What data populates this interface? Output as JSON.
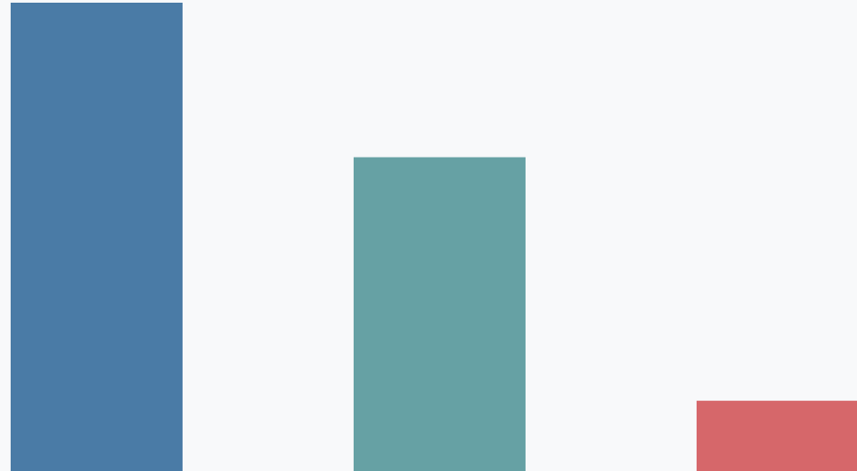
{
  "chart_data": {
    "type": "bar",
    "values": [
      100,
      67,
      15
    ],
    "colors": [
      "#4a7ba6",
      "#66a1a4",
      "#d6676a"
    ],
    "ylim": [
      0,
      100
    ]
  }
}
